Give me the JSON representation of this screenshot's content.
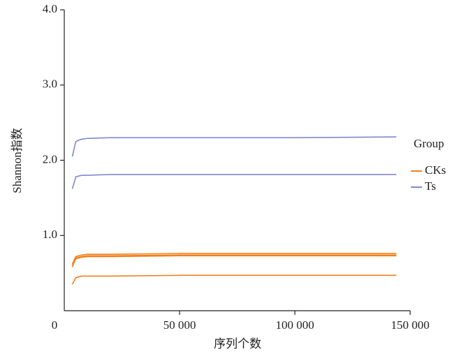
{
  "chart_data": {
    "type": "line",
    "x_label": "序列个数",
    "y_label": "Shannon指数",
    "legend_title": "Group",
    "x": [
      3500,
      5000,
      7500,
      10000,
      20000,
      50000,
      100000,
      144000
    ],
    "series": [
      {
        "name": "CKs",
        "color": "#f07f1a",
        "values": [
          0.62,
          0.72,
          0.74,
          0.75,
          0.75,
          0.76,
          0.76,
          0.76
        ]
      },
      {
        "name": "CKs",
        "color": "#f07f1a",
        "values": [
          0.58,
          0.7,
          0.72,
          0.73,
          0.73,
          0.74,
          0.74,
          0.74
        ]
      },
      {
        "name": "CKs",
        "color": "#f07f1a",
        "values": [
          0.6,
          0.69,
          0.71,
          0.72,
          0.72,
          0.73,
          0.73,
          0.73
        ]
      },
      {
        "name": "CKs",
        "color": "#f07f1a",
        "values": [
          0.35,
          0.44,
          0.46,
          0.46,
          0.46,
          0.47,
          0.47,
          0.47
        ]
      },
      {
        "name": "Ts",
        "color": "#8088d0",
        "values": [
          2.05,
          2.25,
          2.28,
          2.29,
          2.3,
          2.3,
          2.3,
          2.31
        ]
      },
      {
        "name": "Ts",
        "color": "#8088d0",
        "values": [
          1.62,
          1.78,
          1.8,
          1.8,
          1.81,
          1.81,
          1.81,
          1.81
        ]
      }
    ],
    "xlim": [
      0,
      150000
    ],
    "xticks": [
      0,
      {
        "value": 50000,
        "label": "50 000"
      },
      {
        "value": 100000,
        "label": "100 000"
      },
      {
        "value": 150000,
        "label": "150 000"
      }
    ],
    "ylim": [
      0,
      4
    ],
    "yticks": [
      {
        "value": 1,
        "label": "1.0"
      },
      {
        "value": 2,
        "label": "2.0"
      },
      {
        "value": 3,
        "label": "3.0"
      },
      {
        "value": 4,
        "label": "4.0"
      }
    ],
    "legend_position": "right"
  }
}
